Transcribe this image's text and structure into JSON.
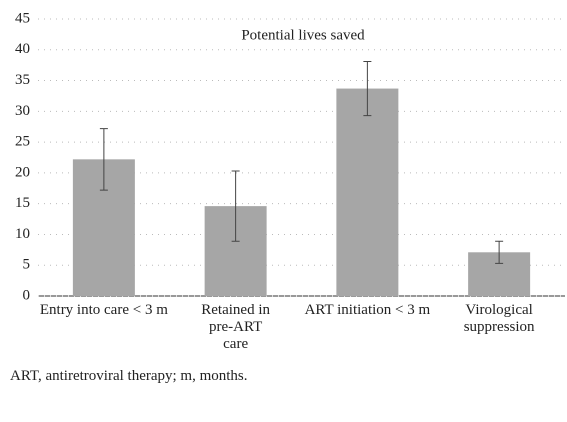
{
  "chart_data": {
    "type": "bar",
    "title": "Potential lives saved",
    "categories": [
      "Entry into care < 3 m",
      "Retained in pre-ART care",
      "ART initiation < 3 m",
      "Virological suppression"
    ],
    "values": [
      22.2,
      14.6,
      33.7,
      7.1
    ],
    "errors": [
      5.0,
      5.7,
      4.4,
      1.8
    ],
    "color": "#a6a6a6",
    "ylim": [
      0,
      45
    ],
    "yticks": [
      0,
      5,
      10,
      15,
      20,
      25,
      30,
      35,
      40,
      45
    ],
    "grid": true
  },
  "footnote": "ART, antiretroviral therapy; m, months."
}
